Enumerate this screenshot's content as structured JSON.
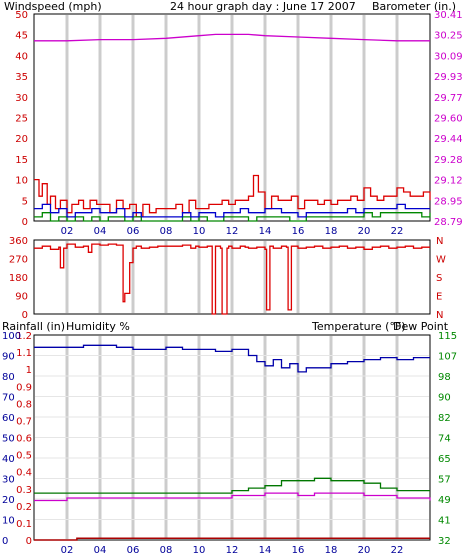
{
  "title": "24 hour graph day : June 17 2007",
  "colors": {
    "wind": "#dd0000",
    "wind_gust": "#dd0000",
    "wind_avg": "#0000cc",
    "wind_green": "#008800",
    "barometer": "#cc00cc",
    "direction": "#dd0000",
    "humidity": "#0000aa",
    "temperature": "#007700",
    "dew_point": "#cc00cc",
    "rainfall": "#aa0000",
    "left_axis": "#cc0000",
    "humidity_axis": "#000099",
    "right_axis_top": "#cc00cc",
    "right_axis_bottom": "#008800",
    "grid": "#cccccc",
    "frame": "#000000",
    "x_labels": "#000099"
  },
  "chart_data": [
    {
      "id": "wind-barometer",
      "type": "line",
      "left_label": "Windspeed (mph)",
      "right_label": "Barometer (in.)",
      "left_ticks": [
        "50",
        "45",
        "40",
        "35",
        "30",
        "25",
        "20",
        "15",
        "10",
        "5",
        "0"
      ],
      "left_range": [
        0,
        50
      ],
      "right_ticks": [
        "30.41",
        "30.25",
        "30.09",
        "29.93",
        "29.77",
        "29.60",
        "29.44",
        "29.28",
        "29.12",
        "28.95",
        "28.79"
      ],
      "right_range": [
        28.79,
        30.41
      ],
      "x_ticks": [
        "02",
        "04",
        "06",
        "08",
        "10",
        "12",
        "14",
        "16",
        "18",
        "20",
        "22"
      ],
      "x_range_hours": [
        0,
        24
      ],
      "grid": true,
      "series": [
        {
          "key": "gust",
          "hours": [
            0,
            0.3,
            0.5,
            0.8,
            1,
            1.3,
            1.6,
            2,
            2.3,
            2.7,
            3,
            3.4,
            3.8,
            4.2,
            4.6,
            5,
            5.4,
            5.8,
            6.2,
            6.6,
            7,
            7.4,
            7.8,
            8.2,
            8.6,
            9,
            9.4,
            9.8,
            10.2,
            10.6,
            11,
            11.4,
            11.8,
            12.2,
            12.6,
            13,
            13.3,
            13.6,
            14,
            14.4,
            14.8,
            15.2,
            15.6,
            16,
            16.4,
            16.8,
            17.2,
            17.6,
            18,
            18.4,
            18.8,
            19.2,
            19.6,
            20,
            20.4,
            20.8,
            21.2,
            21.6,
            22,
            22.4,
            22.8,
            23.2,
            23.6,
            24
          ],
          "values": [
            10,
            6,
            9,
            4,
            6,
            3,
            5,
            2,
            4,
            5,
            3,
            5,
            4,
            4,
            2,
            5,
            3,
            4,
            1,
            4,
            2,
            3,
            3,
            3,
            4,
            2,
            5,
            3,
            3,
            4,
            4,
            5,
            4,
            5,
            5,
            6,
            11,
            7,
            3,
            6,
            5,
            5,
            6,
            3,
            5,
            5,
            4,
            5,
            4,
            5,
            5,
            6,
            5,
            8,
            6,
            5,
            6,
            6,
            8,
            7,
            6,
            6,
            7,
            5
          ]
        },
        {
          "key": "avg",
          "hours": [
            0,
            0.5,
            1,
            1.5,
            2,
            2.5,
            3,
            3.5,
            4,
            4.5,
            5,
            5.5,
            6,
            6.5,
            7,
            7.5,
            8,
            8.5,
            9,
            9.5,
            10,
            10.5,
            11,
            11.5,
            12,
            12.5,
            13,
            13.5,
            14,
            14.5,
            15,
            15.5,
            16,
            16.5,
            17,
            17.5,
            18,
            18.5,
            19,
            19.5,
            20,
            20.5,
            21,
            21.5,
            22,
            22.5,
            23,
            23.5,
            24
          ],
          "values": [
            3,
            4,
            2,
            3,
            1,
            2,
            2,
            3,
            2,
            2,
            3,
            1,
            2,
            1,
            1,
            1,
            1,
            1,
            2,
            1,
            2,
            2,
            1,
            2,
            2,
            3,
            2,
            2,
            3,
            3,
            2,
            2,
            1,
            2,
            2,
            2,
            2,
            2,
            3,
            2,
            3,
            3,
            3,
            3,
            4,
            3,
            3,
            3,
            3
          ]
        },
        {
          "key": "lull",
          "hours": [
            0,
            0.5,
            1,
            1.5,
            2,
            2.5,
            3,
            3.5,
            4,
            4.5,
            5,
            5.5,
            6,
            6.5,
            7,
            7.5,
            8,
            8.5,
            9,
            9.5,
            10,
            10.5,
            11,
            11.5,
            12,
            12.5,
            13,
            13.5,
            14,
            14.5,
            15,
            15.5,
            16,
            16.5,
            17,
            17.5,
            18,
            18.5,
            19,
            19.5,
            20,
            20.5,
            21,
            21.5,
            22,
            22.5,
            23,
            23.5,
            24
          ],
          "values": [
            1,
            2,
            0,
            1,
            0,
            1,
            0,
            1,
            0,
            1,
            1,
            0,
            1,
            0,
            0,
            0,
            0,
            0,
            1,
            0,
            1,
            0,
            0,
            1,
            1,
            1,
            0,
            1,
            1,
            1,
            1,
            0,
            0,
            1,
            1,
            1,
            1,
            1,
            1,
            1,
            2,
            1,
            2,
            2,
            2,
            2,
            2,
            1,
            2
          ]
        },
        {
          "key": "barometer",
          "hours": [
            0,
            2,
            4,
            6,
            8,
            10,
            11,
            12,
            13,
            14,
            16,
            18,
            20,
            22,
            24
          ],
          "values": [
            30.2,
            30.2,
            30.21,
            30.21,
            30.22,
            30.24,
            30.25,
            30.25,
            30.25,
            30.24,
            30.23,
            30.22,
            30.21,
            30.2,
            30.2
          ]
        }
      ]
    },
    {
      "id": "wind-direction",
      "type": "line",
      "left_ticks": [
        "360",
        "270",
        "180",
        "90",
        "0"
      ],
      "left_range": [
        0,
        360
      ],
      "right_ticks": [
        "N",
        "W",
        "S",
        "E",
        "N"
      ],
      "x_range_hours": [
        0,
        24
      ],
      "grid": true,
      "series": [
        {
          "key": "direction",
          "hours": [
            0,
            0.5,
            1,
            1.5,
            1.6,
            1.8,
            2,
            2.5,
            3,
            3.3,
            3.5,
            4,
            4.5,
            5,
            5.4,
            5.5,
            5.8,
            6,
            6.2,
            6.5,
            7,
            7.5,
            8,
            8.5,
            9,
            9.5,
            9.8,
            10,
            10.5,
            10.8,
            11,
            11.3,
            11.4,
            11.7,
            11.8,
            12,
            12.5,
            12.8,
            13,
            13.5,
            14,
            14.1,
            14.3,
            14.5,
            15,
            15.3,
            15.4,
            15.6,
            16,
            16.5,
            17,
            17.5,
            18,
            18.5,
            19,
            19.5,
            20,
            20.5,
            21,
            21.5,
            22,
            22.5,
            23,
            23.5,
            24
          ],
          "values": [
            320,
            330,
            315,
            325,
            225,
            320,
            340,
            325,
            330,
            300,
            340,
            335,
            340,
            335,
            60,
            100,
            250,
            320,
            330,
            320,
            325,
            330,
            330,
            330,
            335,
            320,
            330,
            325,
            330,
            0,
            330,
            320,
            0,
            320,
            330,
            320,
            330,
            325,
            320,
            325,
            315,
            20,
            330,
            320,
            330,
            325,
            20,
            330,
            320,
            325,
            330,
            320,
            325,
            330,
            320,
            325,
            315,
            325,
            330,
            320,
            325,
            330,
            320,
            325,
            325
          ]
        }
      ]
    },
    {
      "id": "rain-humidity-temp",
      "type": "line",
      "left_label_rain": "Rainfall (in)",
      "left_label_humidity": "Humidity %",
      "right_label": "Temperature (°F)",
      "right_label_extra": "Dew Point",
      "rain_ticks": [
        "1.2",
        "1.1",
        "1",
        "0.9",
        "0.8",
        "0.7",
        "0.6",
        "0.5",
        "0.4",
        "0.3",
        "0.2",
        "0.1",
        "0"
      ],
      "humidity_ticks": [
        "100",
        "90",
        "80",
        "70",
        "60",
        "50",
        "40",
        "30",
        "20",
        "10",
        "0"
      ],
      "humidity_range": [
        0,
        100
      ],
      "temp_ticks": [
        "115",
        "107",
        "98",
        "90",
        "82",
        "74",
        "65",
        "57",
        "49",
        "41",
        "32"
      ],
      "temp_range": [
        32,
        115
      ],
      "x_ticks": [
        "02",
        "04",
        "06",
        "08",
        "10",
        "12",
        "14",
        "16",
        "18",
        "20",
        "22"
      ],
      "x_range_hours": [
        0,
        24
      ],
      "grid": true,
      "series": [
        {
          "key": "humidity",
          "hours": [
            0,
            1,
            2,
            3,
            4,
            5,
            6,
            7,
            8,
            9,
            10,
            11,
            12,
            13,
            13.5,
            14,
            14.5,
            15,
            15.5,
            16,
            16.5,
            17,
            18,
            19,
            20,
            21,
            22,
            23,
            24
          ],
          "values": [
            94,
            94,
            94,
            95,
            95,
            94,
            93,
            93,
            94,
            93,
            93,
            92,
            93,
            90,
            87,
            85,
            88,
            84,
            86,
            82,
            84,
            84,
            86,
            87,
            88,
            89,
            88,
            89,
            89
          ]
        },
        {
          "key": "temperature",
          "hours": [
            0,
            2,
            4,
            6,
            8,
            10,
            12,
            13,
            14,
            15,
            16,
            17,
            18,
            19,
            20,
            21,
            22,
            23,
            24
          ],
          "values": [
            51,
            51,
            51,
            51,
            51,
            51,
            52,
            53,
            54,
            56,
            56,
            57,
            56,
            56,
            55,
            53,
            52,
            52,
            52
          ]
        },
        {
          "key": "dew_point",
          "hours": [
            0,
            2,
            4,
            6,
            8,
            10,
            12,
            13,
            14,
            15,
            16,
            17,
            18,
            19,
            20,
            21,
            22,
            23,
            24
          ],
          "values": [
            48,
            49,
            49,
            49,
            49,
            49,
            50,
            50,
            51,
            51,
            50,
            51,
            51,
            51,
            50,
            50,
            49,
            49,
            48
          ]
        },
        {
          "key": "rainfall",
          "hours": [
            0,
            2.5,
            2.6,
            24
          ],
          "values": [
            0,
            0,
            0.01,
            0.01
          ]
        }
      ]
    }
  ]
}
